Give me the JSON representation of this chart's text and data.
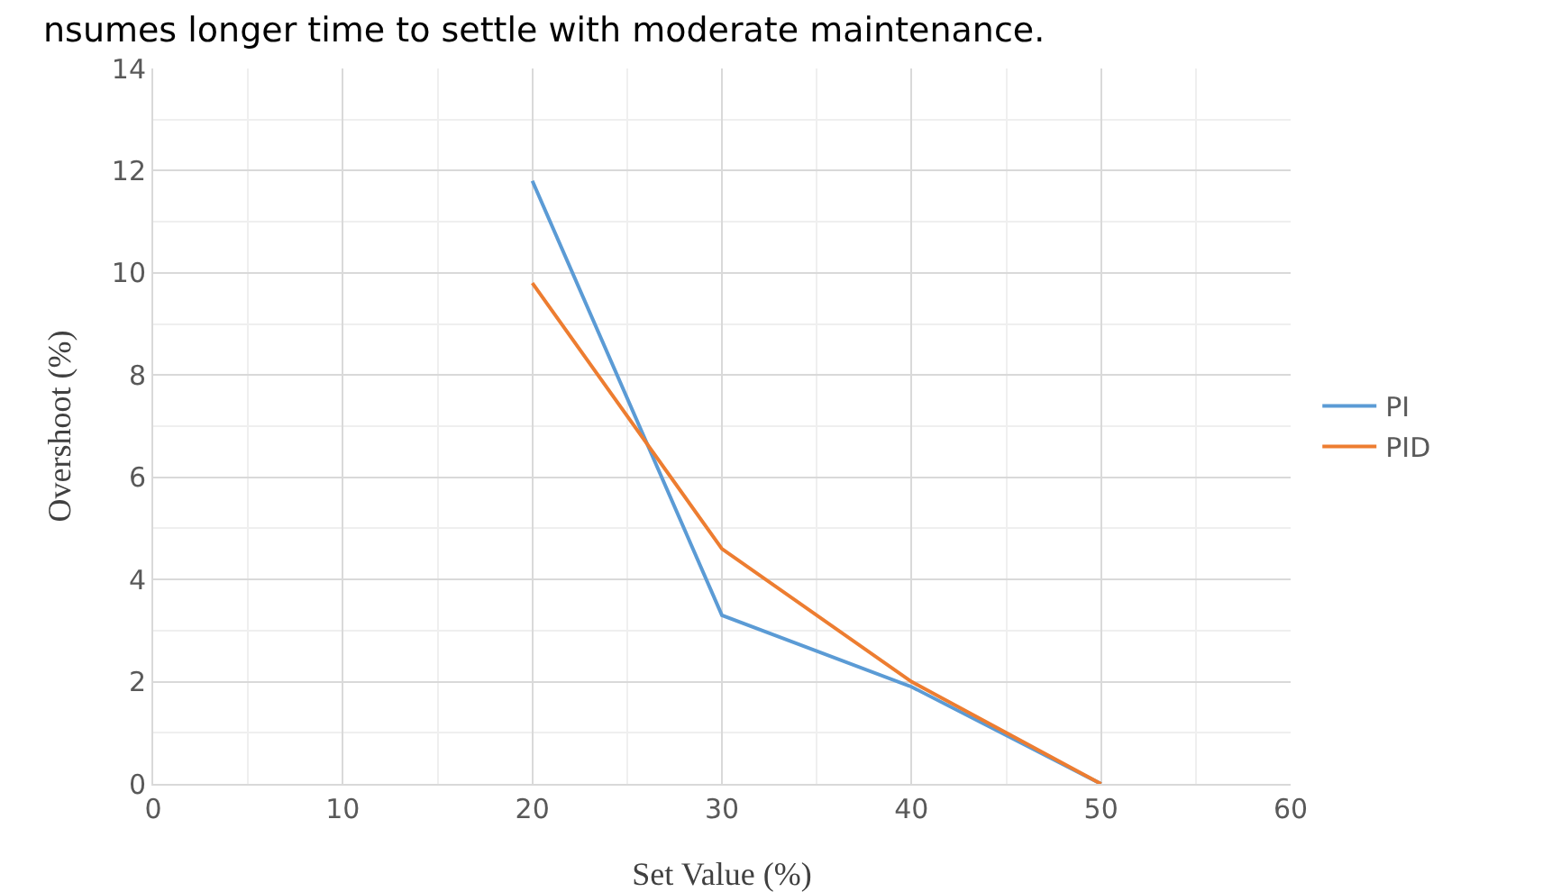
{
  "chart_data": {
    "type": "line",
    "xlabel": "Set Value (%)",
    "ylabel": "Overshoot (%)",
    "annotations": [
      "nsumes longer time to settle with moderate maintenance."
    ],
    "x": [
      20,
      30,
      40,
      50
    ],
    "series": [
      {
        "name": "PI",
        "color": "#5b9bd5",
        "values": [
          11.8,
          3.3,
          1.9,
          0
        ]
      },
      {
        "name": "PID",
        "color": "#ed7d31",
        "values": [
          9.8,
          4.6,
          2.0,
          0
        ]
      }
    ],
    "xlim": [
      0,
      60
    ],
    "xticks": [
      0,
      10,
      20,
      30,
      40,
      50,
      60
    ],
    "ylim": [
      0,
      14
    ],
    "yticks": [
      0,
      2,
      4,
      6,
      8,
      10,
      12,
      14
    ],
    "grid": true,
    "legend": "right",
    "marker": "none",
    "line_style": "solid"
  }
}
